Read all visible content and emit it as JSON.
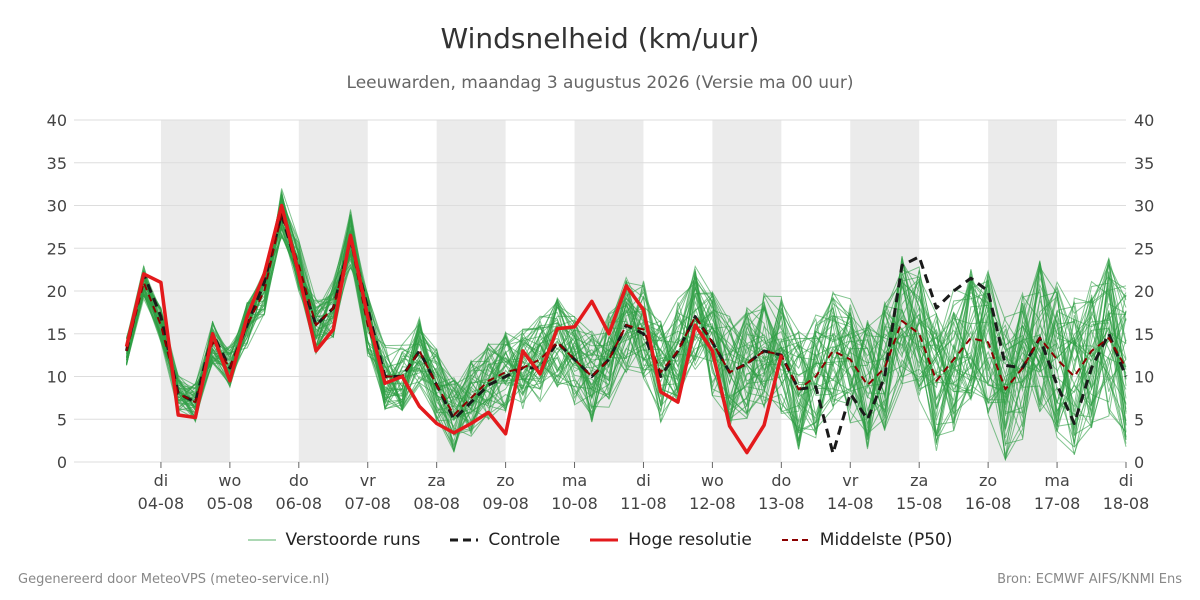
{
  "title": "Windsnelheid (km/uur)",
  "subtitle": "Leeuwarden, maandag  3 augustus 2026 (Versie ma 00 uur)",
  "footer_left": "Gegenereerd door MeteoVPS (meteo-service.nl)",
  "footer_right": "Bron: ECMWF AIFS/KNMI Ens",
  "legend": [
    {
      "label": "Verstoorde runs",
      "key": "ens"
    },
    {
      "label": "Controle",
      "key": "control"
    },
    {
      "label": "Hoge resolutie",
      "key": "hires"
    },
    {
      "label": "Middelste (P50)",
      "key": "p50"
    }
  ],
  "colors": {
    "ensemble": "#2e9e44",
    "control": "#1a1a1a",
    "hires": "#e31a1c",
    "p50": "#8b0000",
    "weekend_band": "#ebebeb",
    "grid": "#dddddd"
  },
  "chart_data": {
    "type": "line",
    "ylim": [
      0,
      40
    ],
    "yticks": [
      0,
      5,
      10,
      15,
      20,
      25,
      30,
      35,
      40
    ],
    "x_day_range": [
      3,
      18
    ],
    "x_ticks": [
      {
        "day": "di",
        "date": "04-08"
      },
      {
        "day": "wo",
        "date": "05-08"
      },
      {
        "day": "do",
        "date": "06-08"
      },
      {
        "day": "vr",
        "date": "07-08"
      },
      {
        "day": "za",
        "date": "08-08"
      },
      {
        "day": "zo",
        "date": "09-08"
      },
      {
        "day": "ma",
        "date": "10-08"
      },
      {
        "day": "di",
        "date": "11-08"
      },
      {
        "day": "wo",
        "date": "12-08"
      },
      {
        "day": "do",
        "date": "13-08"
      },
      {
        "day": "vr",
        "date": "14-08"
      },
      {
        "day": "za",
        "date": "15-08"
      },
      {
        "day": "zo",
        "date": "16-08"
      },
      {
        "day": "ma",
        "date": "17-08"
      },
      {
        "day": "di",
        "date": "18-08"
      }
    ],
    "shaded_days": [
      4,
      6,
      8,
      10,
      12,
      14,
      16
    ],
    "series": [
      {
        "name": "Hoge resolutie",
        "x": [
          3.5,
          3.75,
          4.0,
          4.25,
          4.5,
          4.75,
          5.0,
          5.25,
          5.5,
          5.75,
          6.0,
          6.25,
          6.5,
          6.75,
          7.0,
          7.25,
          7.5,
          7.75,
          8.0,
          8.25,
          8.5,
          8.75,
          9.0,
          9.25,
          9.5,
          9.75,
          10.0,
          10.25,
          10.5,
          10.75,
          11.0,
          11.25,
          11.5,
          11.75,
          12.0,
          12.25,
          12.5,
          12.75,
          13.0
        ],
        "y": [
          13.5,
          22,
          21,
          5.5,
          5.2,
          15,
          9.5,
          17,
          22,
          30,
          22,
          13,
          15.5,
          26.5,
          17,
          9.2,
          10,
          6.5,
          4.5,
          3.4,
          4.5,
          5.8,
          3.3,
          13,
          10.3,
          15.6,
          15.8,
          18.8,
          15,
          20.6,
          17.8,
          8.2,
          7,
          16,
          13,
          4.2,
          1.1,
          4.3,
          12.5
        ]
      },
      {
        "name": "Controle",
        "x": [
          3.5,
          3.75,
          4.0,
          4.25,
          4.5,
          4.75,
          5.0,
          5.25,
          5.5,
          5.75,
          6.0,
          6.25,
          6.5,
          6.75,
          7.0,
          7.25,
          7.5,
          7.75,
          8.0,
          8.25,
          8.5,
          8.75,
          9.0,
          9.25,
          9.5,
          9.75,
          10.0,
          10.25,
          10.5,
          10.75,
          11.0,
          11.25,
          11.5,
          11.75,
          12.0,
          12.25,
          12.5,
          12.75,
          13.0,
          13.25,
          13.5,
          13.75,
          14.0,
          14.25,
          14.5,
          14.75,
          15.0,
          15.25,
          15.5,
          15.75,
          16.0,
          16.25,
          16.5,
          16.75,
          17.0,
          17.25,
          17.5,
          17.75,
          18.0
        ],
        "y": [
          13,
          22,
          17,
          8,
          7,
          15,
          11,
          16,
          21,
          29,
          22,
          16,
          18,
          26,
          18,
          10,
          10,
          13,
          9,
          5,
          7,
          9,
          10,
          11,
          11,
          14,
          12,
          10,
          12,
          16,
          15,
          10,
          13,
          17,
          14,
          10.5,
          11.5,
          13,
          12.5,
          8.5,
          8.8,
          1,
          8,
          5,
          10,
          23,
          24,
          18,
          20,
          21.5,
          20,
          11.3,
          11,
          14.5,
          9,
          4.5,
          11,
          15,
          10
        ]
      },
      {
        "name": "Middelste (P50)",
        "x": [
          3.5,
          3.75,
          4.0,
          4.25,
          4.5,
          4.75,
          5.0,
          5.25,
          5.5,
          5.75,
          6.0,
          6.25,
          6.5,
          6.75,
          7.0,
          7.25,
          7.5,
          7.75,
          8.0,
          8.25,
          8.5,
          8.75,
          9.0,
          9.25,
          9.5,
          9.75,
          10.0,
          10.25,
          10.5,
          10.75,
          11.0,
          11.25,
          11.5,
          11.75,
          12.0,
          12.25,
          12.5,
          12.75,
          13.0,
          13.25,
          13.5,
          13.75,
          14.0,
          14.25,
          14.5,
          14.75,
          15.0,
          15.25,
          15.5,
          15.75,
          16.0,
          16.25,
          16.5,
          16.75,
          17.0,
          17.25,
          17.5,
          17.75,
          18.0
        ],
        "y": [
          13,
          21,
          16,
          8,
          7,
          14,
          11,
          16,
          20,
          29,
          23,
          16,
          18,
          26,
          16,
          10,
          10,
          13,
          9,
          5.5,
          7.5,
          9.5,
          10.5,
          11,
          12,
          14,
          12,
          10,
          12,
          16,
          15.5,
          10.5,
          13,
          17,
          14,
          10.5,
          11.5,
          13,
          12.5,
          8.5,
          10,
          13,
          12,
          9,
          11,
          16.5,
          15,
          9.5,
          12,
          14.5,
          14,
          8.5,
          11,
          14.5,
          12,
          10,
          13,
          14.5,
          11
        ]
      }
    ]
  }
}
